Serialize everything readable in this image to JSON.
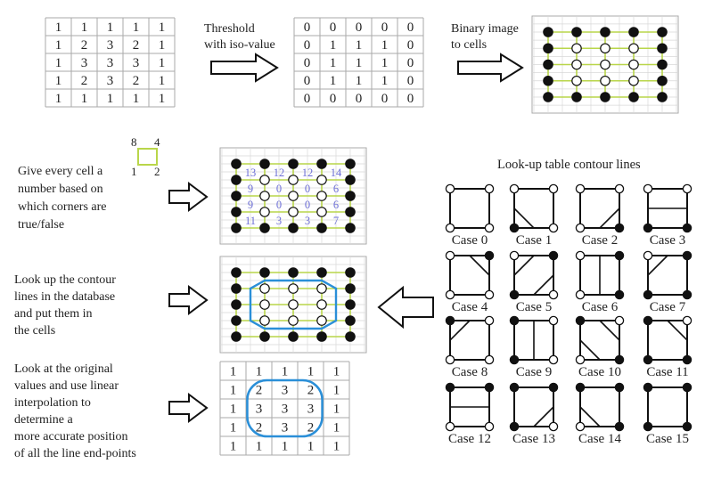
{
  "grids": {
    "original": [
      [
        1,
        1,
        1,
        1,
        1
      ],
      [
        1,
        2,
        3,
        2,
        1
      ],
      [
        1,
        3,
        3,
        3,
        1
      ],
      [
        1,
        2,
        3,
        2,
        1
      ],
      [
        1,
        1,
        1,
        1,
        1
      ]
    ],
    "binary": [
      [
        0,
        0,
        0,
        0,
        0
      ],
      [
        0,
        1,
        1,
        1,
        0
      ],
      [
        0,
        1,
        1,
        1,
        0
      ],
      [
        0,
        1,
        1,
        1,
        0
      ],
      [
        0,
        0,
        0,
        0,
        0
      ]
    ],
    "cell_index": [
      [
        13,
        12,
        12,
        14
      ],
      [
        9,
        0,
        0,
        6
      ],
      [
        9,
        0,
        0,
        6
      ],
      [
        11,
        3,
        3,
        7
      ]
    ]
  },
  "captions": {
    "threshold": [
      "Threshold",
      "with iso-value"
    ],
    "binary_to_cells": [
      "Binary image",
      "to cells"
    ],
    "give_number": [
      "Give every cell a",
      "number based on",
      "which corners are",
      "true/false"
    ],
    "lookup": [
      "Look up the contour",
      "lines in the database",
      "and put them in",
      "the cells"
    ],
    "interpolate": [
      "Look at the original",
      "values and use linear",
      "interpolation to",
      "determine a",
      "more accurate position",
      "of all the line end-points"
    ],
    "table_title": "Look-up table contour lines"
  },
  "corner_legend": {
    "tl": "8",
    "tr": "4",
    "bl": "1",
    "br": "2"
  },
  "cases": [
    {
      "label": "Case 0"
    },
    {
      "label": "Case 1"
    },
    {
      "label": "Case 2"
    },
    {
      "label": "Case 3"
    },
    {
      "label": "Case 4"
    },
    {
      "label": "Case 5"
    },
    {
      "label": "Case 6"
    },
    {
      "label": "Case 7"
    },
    {
      "label": "Case 8"
    },
    {
      "label": "Case 9"
    },
    {
      "label": "Case 10"
    },
    {
      "label": "Case 11"
    },
    {
      "label": "Case 12"
    },
    {
      "label": "Case 13"
    },
    {
      "label": "Case 14"
    },
    {
      "label": "Case 15"
    }
  ],
  "colors": {
    "grid_line": "#b9d64a",
    "contour": "#2a8fd8",
    "index_text": "#6d6fd6",
    "table_border": "#aaaaaa"
  }
}
